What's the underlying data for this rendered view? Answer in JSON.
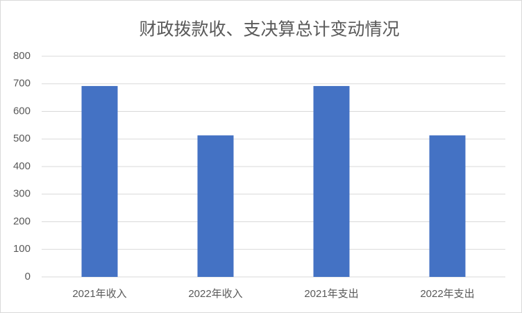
{
  "chart_data": {
    "type": "bar",
    "title": "财政拨款收、支决算总计变动情况",
    "categories": [
      "2021年收入",
      "2022年收入",
      "2021年支出",
      "2022年支出"
    ],
    "values": [
      692,
      513,
      692,
      513
    ],
    "color": "#4472c4",
    "ylim": [
      0,
      800
    ],
    "yticks": [
      0,
      100,
      200,
      300,
      400,
      500,
      600,
      700,
      800
    ],
    "grid": true
  }
}
